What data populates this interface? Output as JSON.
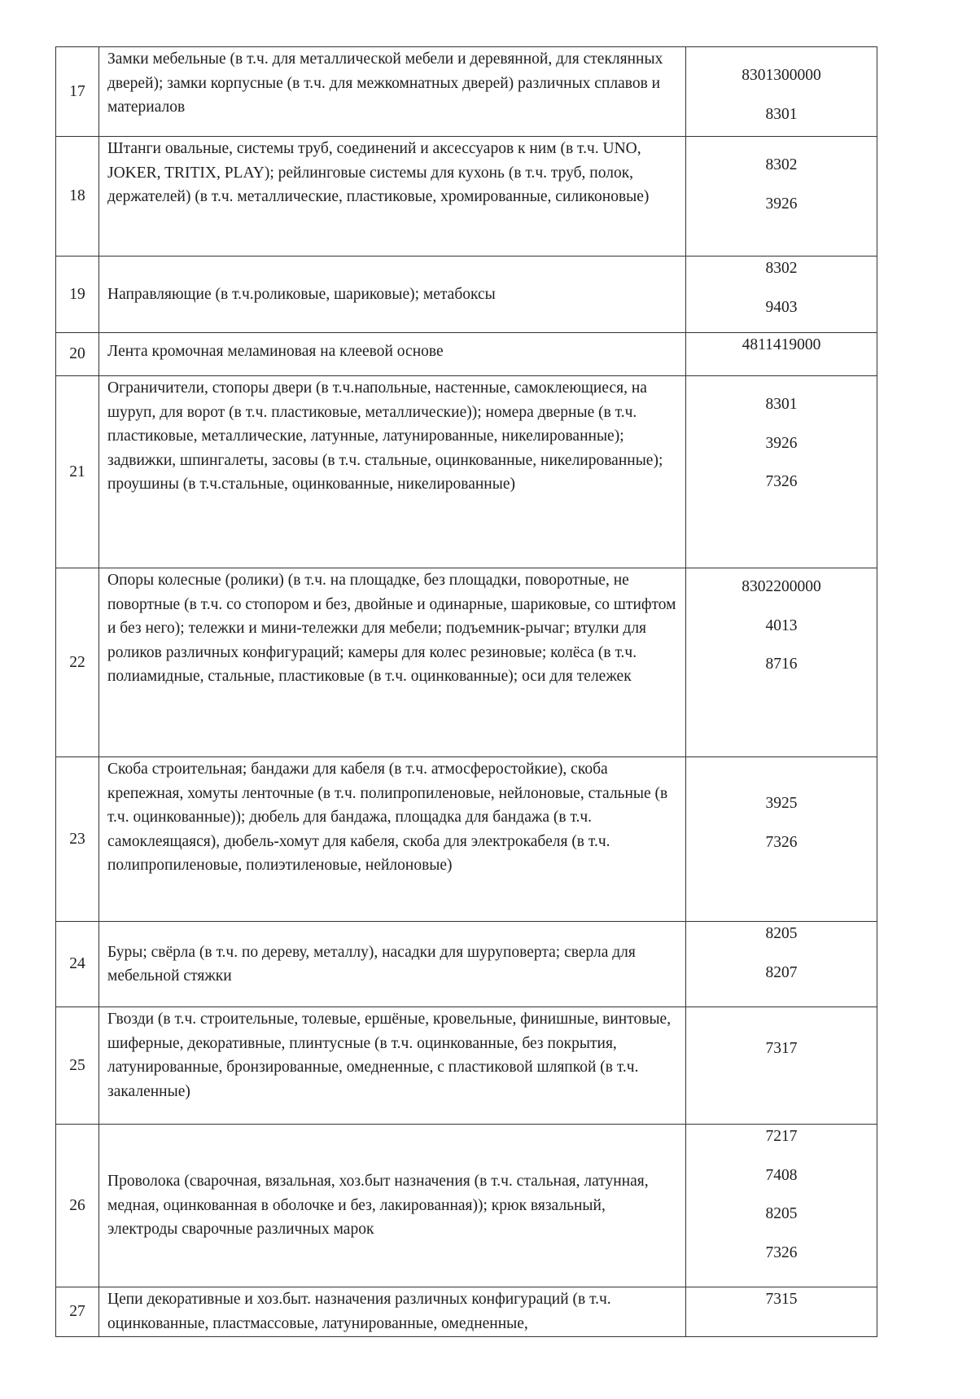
{
  "rows": [
    {
      "num": "17",
      "desc": "Замки мебельные (в т.ч. для металлической мебели и деревянной, для стеклянных дверей); замки корпусные (в т.ч. для межкомнатных дверей) различных сплавов и материалов",
      "codes": [
        "8301300000",
        "8301"
      ]
    },
    {
      "num": "18",
      "desc": "Штанги овальные, системы труб, соединений и аксессуаров к ним (в т.ч. UNO, JOKER, TRITIX, PLAY); рейлинговые системы для кухонь (в т.ч. труб, полок, держателей) (в т.ч. металлические, пластиковые, хромированные, силиконовые)",
      "codes": [
        "8302",
        "3926"
      ]
    },
    {
      "num": "19",
      "desc": "Направляющие (в т.ч.роликовые, шариковые); метабоксы",
      "codes": [
        "8302",
        "9403"
      ]
    },
    {
      "num": "20",
      "desc": "Лента кромочная меламиновая на клеевой основе",
      "codes": [
        "4811419000"
      ]
    },
    {
      "num": "21",
      "desc": "Ограничители, стопоры двери (в т.ч.напольные, настенные, самоклеющиеся, на шуруп, для ворот (в т.ч. пластиковые, металлические)); номера дверные (в т.ч. пластиковые, металлические, латунные, латунированные, никелированные); задвижки, шпингалеты, засовы (в т.ч. стальные, оцинкованные, никелированные); проушины (в т.ч.стальные, оцинкованные, никелированные)",
      "codes": [
        "8301",
        "3926",
        "7326"
      ]
    },
    {
      "num": "22",
      "desc": "Опоры колесные (ролики)  (в т.ч. на площадке, без площадки, поворотные, не повортные (в т.ч. со стопором и без, двойные и одинарные, шариковые, со штифтом и без него); тележки и  мини-тележки для мебели; подъемник-рычаг;  втулки  для роликов различных  конфигураций; камеры для колес резиновые; колёса (в т.ч. полиамидные, стальные, пластиковые (в т.ч. оцинкованные);  оси для тележек",
      "codes": [
        "8302200000",
        "4013",
        "8716"
      ]
    },
    {
      "num": "23",
      "desc": "Скоба строительная; бандажи для кабеля (в т.ч. атмосферостойкие), скоба крепежная, хомуты ленточные (в т.ч. полипропиленовые, нейлоновые, стальные (в т.ч. оцинкованные)); дюбель для бандажа, площадка для бандажа (в т.ч. самоклеящаяся), дюбель-хомут для кабеля, скоба для электрокабеля (в т.ч. полипропиленовые, полиэтиленовые, нейлоновые)",
      "codes": [
        "3925",
        "7326"
      ]
    },
    {
      "num": "24",
      "desc": "Буры; свёрла (в т.ч. по дереву, металлу), насадки для шуруповерта; сверла для мебельной стяжки",
      "codes": [
        "8205",
        "8207"
      ]
    },
    {
      "num": "25",
      "desc": "Гвозди (в т.ч. строительные, толевые, ершёные, кровельные, финишные, винтовые, шиферные, декоративные, плинтусные (в т.ч. оцинкованные, без покрытия, латунированные, бронзированные, омедненные, с пластиковой шляпкой (в т.ч. закаленные)",
      "codes": [
        "7317"
      ]
    },
    {
      "num": "26",
      "desc": "Проволока (сварочная, вязальная, хоз.быт назначения (в т.ч. стальная, латунная, медная, оцинкованная в оболочке и без, лакированная));  крюк вязальный,  электроды сварочные различных марок",
      "codes": [
        "7217",
        "7408",
        "8205",
        "7326"
      ]
    },
    {
      "num": "27",
      "desc": "Цепи декоративные и хоз.быт. назначения  различных конфигураций (в т.ч. оцинкованные, пластмассовые, латунированные, омедненные,",
      "codes": [
        "7315"
      ]
    }
  ]
}
